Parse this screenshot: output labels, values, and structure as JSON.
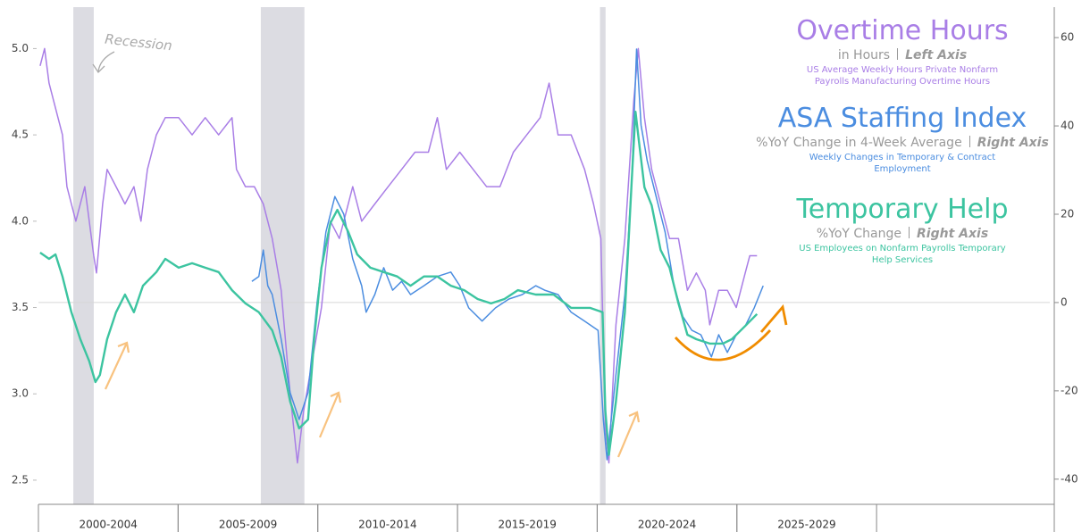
{
  "chart_data": {
    "type": "line",
    "xlim": [
      2000,
      2036.2
    ],
    "xticks": [
      {
        "value": 2002.5,
        "label": "2000-2004"
      },
      {
        "value": 2007.5,
        "label": "2005-2009"
      },
      {
        "value": 2012.5,
        "label": "2010-2014"
      },
      {
        "value": 2017.5,
        "label": "2015-2019"
      },
      {
        "value": 2022.5,
        "label": "2020-2024"
      },
      {
        "value": 2027.5,
        "label": "2025-2029"
      }
    ],
    "ylim": [
      2.36,
      5.24
    ],
    "yticks": [
      2.5,
      {
        "value": 3,
        "label": "3.0"
      },
      3.5,
      {
        "value": 4,
        "label": "4.0"
      },
      4.5,
      {
        "value": 5,
        "label": "5.0"
      }
    ],
    "y2lim": [
      -45.7,
      66.9
    ],
    "y2ticks": [
      -40,
      -20,
      0,
      20,
      40,
      60
    ],
    "reference_line_y2": 0,
    "recession_label": "Recession",
    "recessions": [
      [
        2001.25,
        2001.98
      ],
      [
        2007.96,
        2009.52
      ],
      [
        2020.1,
        2020.3
      ]
    ],
    "series": [
      {
        "name": "Overtime Hours",
        "color": "#a97ee6",
        "axis": "y",
        "unit_note": "in Hours",
        "axis_note": "Left Axis",
        "description": "US Average Weekly Hours Private Nonfarm Payrolls Manufacturing Overtime Hours",
        "x": [
          2000.06,
          2000.22,
          2000.38,
          2000.54,
          2000.7,
          2000.86,
          2001.02,
          2001.18,
          2001.34,
          2001.66,
          2001.82,
          2001.98,
          2002.08,
          2002.3,
          2002.46,
          2002.78,
          2003.1,
          2003.42,
          2003.67,
          2003.9,
          2004.22,
          2004.54,
          2005.02,
          2005.5,
          2005.97,
          2006.45,
          2006.93,
          2007.09,
          2007.41,
          2007.73,
          2008.05,
          2008.37,
          2008.69,
          2009.01,
          2009.27,
          2009.49,
          2009.81,
          2010.13,
          2010.45,
          2010.77,
          2011.25,
          2011.57,
          2012.04,
          2012.52,
          2013.0,
          2013.48,
          2013.96,
          2014.28,
          2014.6,
          2015.08,
          2015.56,
          2016.04,
          2016.52,
          2017.0,
          2017.48,
          2017.96,
          2018.28,
          2018.6,
          2019.07,
          2019.55,
          2019.87,
          2020.13,
          2020.29,
          2020.42,
          2020.67,
          2020.99,
          2021.31,
          2021.47,
          2021.69,
          2021.95,
          2022.27,
          2022.59,
          2022.91,
          2023.23,
          2023.55,
          2023.87,
          2024.03,
          2024.35,
          2024.66,
          2024.98,
          2025.3,
          2025.46,
          2025.72
        ],
        "values": [
          4.9,
          5.0,
          4.8,
          4.7,
          4.6,
          4.5,
          4.2,
          4.1,
          4.0,
          4.2,
          4.0,
          3.8,
          3.7,
          4.1,
          4.3,
          4.2,
          4.1,
          4.2,
          4.0,
          4.3,
          4.5,
          4.6,
          4.6,
          4.5,
          4.6,
          4.5,
          4.6,
          4.3,
          4.2,
          4.2,
          4.1,
          3.9,
          3.6,
          3.0,
          2.6,
          2.9,
          3.2,
          3.5,
          4.0,
          3.9,
          4.2,
          4.0,
          4.1,
          4.2,
          4.3,
          4.4,
          4.4,
          4.6,
          4.3,
          4.4,
          4.3,
          4.2,
          4.2,
          4.4,
          4.5,
          4.6,
          4.8,
          4.5,
          4.5,
          4.3,
          4.1,
          3.9,
          2.8,
          2.6,
          3.4,
          3.9,
          4.7,
          5.0,
          4.6,
          4.3,
          4.1,
          3.9,
          3.9,
          3.6,
          3.7,
          3.6,
          3.4,
          3.6,
          3.6,
          3.5,
          3.7,
          3.8,
          3.8
        ]
      },
      {
        "name": "ASA Staffing Index",
        "color": "#4b8de0",
        "axis": "y2",
        "unit_note": "%YoY Change in 4-Week Average",
        "axis_note": "Right Axis",
        "description": "Weekly Changes in Temporary & Contract Employment",
        "x": [
          2007.64,
          2007.89,
          2008.05,
          2008.21,
          2008.37,
          2008.69,
          2009.01,
          2009.33,
          2009.65,
          2009.97,
          2010.29,
          2010.61,
          2010.93,
          2011.25,
          2011.57,
          2011.73,
          2012.04,
          2012.36,
          2012.68,
          2013.0,
          2013.32,
          2013.8,
          2014.28,
          2014.76,
          2015.08,
          2015.4,
          2015.88,
          2016.36,
          2016.84,
          2017.32,
          2017.8,
          2018.12,
          2018.6,
          2019.07,
          2019.55,
          2020.03,
          2020.22,
          2020.35,
          2020.67,
          2020.99,
          2021.24,
          2021.41,
          2021.57,
          2021.79,
          2022.11,
          2022.43,
          2022.75,
          2023.07,
          2023.39,
          2023.71,
          2024.09,
          2024.35,
          2024.66,
          2024.98,
          2025.3,
          2025.62,
          2025.94
        ],
        "values": [
          4.8,
          5.9,
          11.9,
          3.8,
          1.8,
          -8.3,
          -20.4,
          -26.5,
          -20.4,
          -0.2,
          16,
          24,
          20,
          9.9,
          3.8,
          -2.2,
          1.8,
          7.9,
          2.8,
          4.8,
          1.8,
          3.8,
          5.9,
          6.9,
          3.8,
          -1.2,
          -4.2,
          -1.2,
          0.8,
          1.8,
          3.8,
          2.8,
          1.8,
          -2.2,
          -4.2,
          -6.3,
          -26.5,
          -35.6,
          -16.4,
          1.8,
          28.1,
          57.4,
          40.2,
          32.1,
          24,
          16,
          3.8,
          -3.2,
          -6.3,
          -7.3,
          -12.3,
          -7.3,
          -11.3,
          -7.3,
          -5.3,
          -1.2,
          3.8
        ]
      },
      {
        "name": "Temporary Help",
        "color": "#3cc4a0",
        "axis": "y2",
        "unit_note": "%YoY Change",
        "axis_note": "Right Axis",
        "description": "US Employees on Nonfarm Payrolls Temporary Help Services",
        "x": [
          2000.06,
          2000.38,
          2000.61,
          2000.86,
          2001.18,
          2001.5,
          2001.82,
          2002.04,
          2002.2,
          2002.46,
          2002.78,
          2003.1,
          2003.42,
          2003.74,
          2004.22,
          2004.54,
          2005.02,
          2005.5,
          2005.97,
          2006.45,
          2006.93,
          2007.41,
          2007.89,
          2008.37,
          2008.69,
          2009.01,
          2009.33,
          2009.65,
          2009.87,
          2010.13,
          2010.45,
          2010.7,
          2011.09,
          2011.41,
          2011.88,
          2012.36,
          2012.84,
          2013.32,
          2013.8,
          2014.28,
          2014.76,
          2015.24,
          2015.72,
          2016.2,
          2016.68,
          2017.16,
          2017.8,
          2018.44,
          2019.07,
          2019.74,
          2020.19,
          2020.29,
          2020.42,
          2020.67,
          2020.99,
          2021.24,
          2021.37,
          2021.5,
          2021.69,
          2021.95,
          2022.27,
          2022.59,
          2022.91,
          2023.23,
          2023.55,
          2024.03,
          2024.5,
          2024.82,
          2025.3,
          2025.72
        ],
        "values": [
          11.3,
          9.9,
          10.9,
          5.9,
          -2.2,
          -8.3,
          -13.3,
          -18,
          -16.4,
          -8.3,
          -2.2,
          1.8,
          -2.2,
          3.8,
          6.9,
          9.9,
          7.9,
          8.9,
          7.9,
          6.9,
          2.8,
          -0.2,
          -2.2,
          -6.3,
          -12.3,
          -22.4,
          -28.5,
          -26.5,
          -8.3,
          7.9,
          18,
          21,
          16,
          10.9,
          7.9,
          6.9,
          5.9,
          3.8,
          5.9,
          5.9,
          3.8,
          2.8,
          0.8,
          -0.2,
          0.8,
          2.8,
          1.8,
          1.8,
          -1.2,
          -1.2,
          -2.2,
          -24.4,
          -34.5,
          -22.4,
          -2.2,
          28.1,
          43.2,
          36.2,
          26.1,
          22,
          11.9,
          7.9,
          -0.2,
          -7.3,
          -8.3,
          -9.3,
          -9.3,
          -8.3,
          -5.3,
          -2.6
        ]
      }
    ]
  }
}
